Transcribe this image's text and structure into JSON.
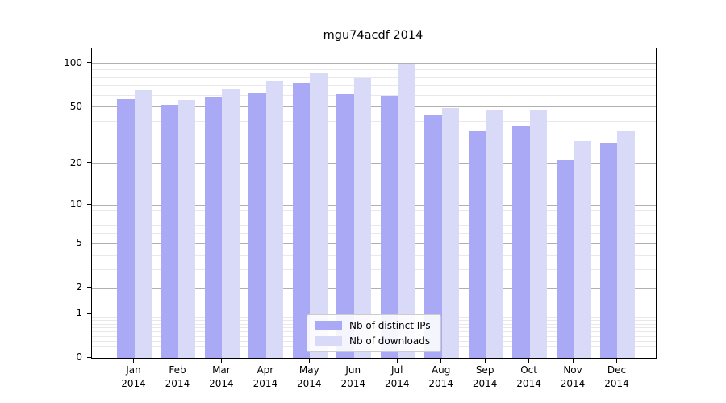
{
  "chart_data": {
    "type": "bar",
    "title": "mgu74acdf 2014",
    "categories": [
      "Jan",
      "Feb",
      "Mar",
      "Apr",
      "May",
      "Jun",
      "Jul",
      "Aug",
      "Sep",
      "Oct",
      "Nov",
      "Dec"
    ],
    "category_year": "2014",
    "series": [
      {
        "name": "Nb of distinct IPs",
        "values": [
          57,
          52,
          59,
          62,
          73,
          61,
          60,
          44,
          34,
          37,
          21,
          28
        ]
      },
      {
        "name": "Nb of downloads",
        "values": [
          65,
          56,
          67,
          75,
          86,
          79,
          100,
          49,
          48,
          48,
          29,
          34
        ]
      }
    ],
    "xlabel": "",
    "ylabel": "",
    "y_scale": "log(1+x)",
    "y_ticks": [
      0,
      1,
      2,
      5,
      10,
      20,
      50,
      100
    ],
    "y_minor_ticks": [
      0.2,
      0.3,
      0.4,
      0.5,
      0.6,
      0.7,
      0.8,
      0.9,
      3,
      4,
      6,
      7,
      8,
      9,
      30,
      40,
      60,
      70,
      80,
      90
    ],
    "ylim": [
      0,
      125
    ],
    "grid": "on",
    "legend_position": "lower center"
  },
  "colors": {
    "distinct_ips_bar": "#a9a9f6",
    "downloads_bar": "#d9d9f8",
    "major_grid": "#b0b0b0",
    "minor_grid": "#e8e8e8",
    "axis": "#000000",
    "legend_border": "#cccccc"
  }
}
